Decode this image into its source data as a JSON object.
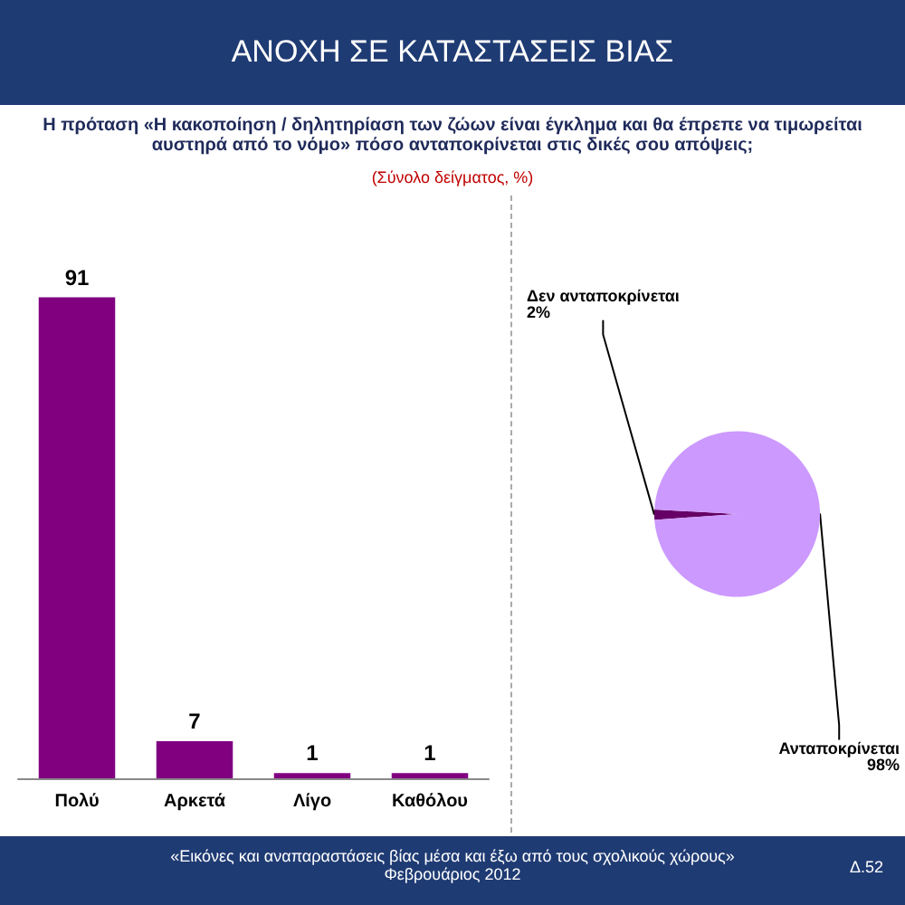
{
  "chart_data": [
    {
      "type": "bar",
      "title": "ΑΝΟΧΗ ΣΕ ΚΑΤΑΣΤΑΣΕΙΣ ΒΙΑΣ",
      "subtitle": "Η πρόταση «Η κακοποίηση / δηλητηρίαση των ζώων είναι έγκλημα και θα έπρεπε να τιμωρείται αυστηρά από το νόμο» πόσο ανταποκρίνεται στις δικές σου απόψεις;",
      "annotations": [
        "(Σύνολο δείγματος, %)",
        "«Εικόνες και αναπαραστάσεις βίας μέσα και έξω από τους σχολικούς χώρους»",
        "Φεβρουάριος 2012",
        "Δ.52"
      ],
      "categories": [
        "Πολύ",
        "Αρκετά",
        "Λίγο",
        "Καθόλου"
      ],
      "values": [
        91,
        7,
        1,
        1
      ],
      "color": "#800080",
      "data_labels": true,
      "grid": false,
      "legend": false
    },
    {
      "type": "pie",
      "categories": [
        "Δεν ανταποκρίνεται",
        "Ανταποκρίνεται"
      ],
      "values": [
        2,
        98
      ],
      "colors": [
        "#660066",
        "#cc99ff"
      ],
      "value_labels": [
        "2%",
        "98%"
      ],
      "legend": false
    }
  ]
}
